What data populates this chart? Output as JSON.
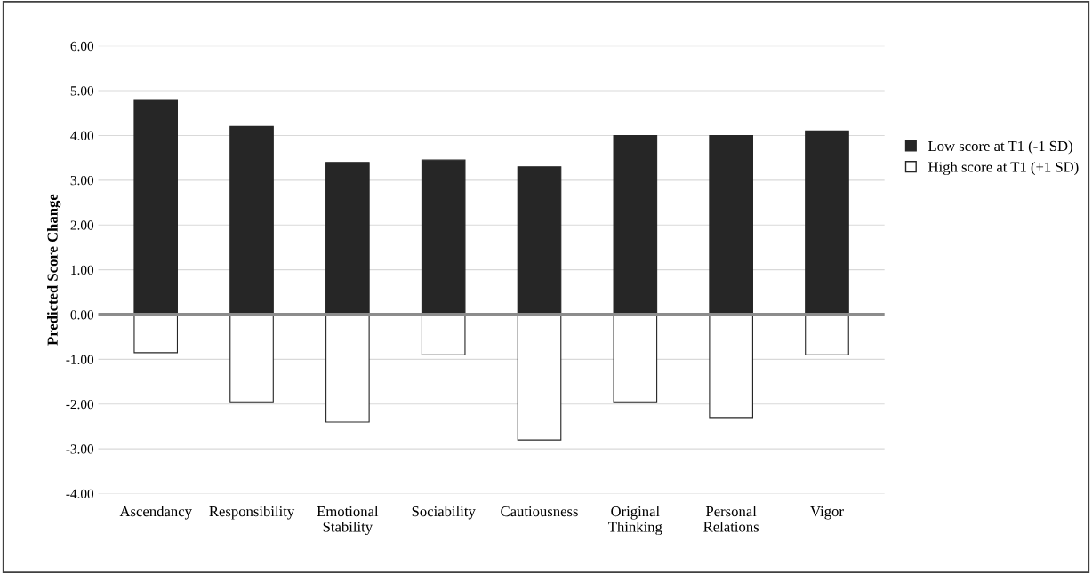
{
  "chart_data": {
    "type": "bar",
    "ylabel": "Predicted Score Change",
    "categories": [
      "Ascendancy",
      "Responsibility",
      "Emotional\nStability",
      "Sociability",
      "Cautiousness",
      "Original\nThinking",
      "Personal\nRelations",
      "Vigor"
    ],
    "series": [
      {
        "name": "Low score at T1 (-1 SD)",
        "color": "#262626",
        "values": [
          4.8,
          4.2,
          3.4,
          3.45,
          3.3,
          4.0,
          4.0,
          4.1
        ]
      },
      {
        "name": "High score at T1 (+1 SD)",
        "color": "#ffffff",
        "values": [
          -0.85,
          -1.95,
          -2.4,
          -0.9,
          -2.8,
          -1.95,
          -2.3,
          -0.9
        ]
      }
    ],
    "ylim": [
      -4,
      6
    ],
    "yticks": [
      {
        "value": -4,
        "label": "-4.00"
      },
      {
        "value": -3,
        "label": "-3.00"
      },
      {
        "value": -2,
        "label": "-2.00"
      },
      {
        "value": -1,
        "label": "-1.00"
      },
      {
        "value": 0,
        "label": "0.00"
      },
      {
        "value": 1,
        "label": "1.00"
      },
      {
        "value": 2,
        "label": "2.00"
      },
      {
        "value": 3,
        "label": "3.00"
      },
      {
        "value": 4,
        "label": "4.00"
      },
      {
        "value": 5,
        "label": "5.00"
      },
      {
        "value": 6,
        "label": "6.00"
      }
    ],
    "ref_lines": [
      {
        "axis": "y",
        "value": 0,
        "color": "#8c8c8c"
      }
    ],
    "grid": "y",
    "legend": "right",
    "stacked": true
  }
}
